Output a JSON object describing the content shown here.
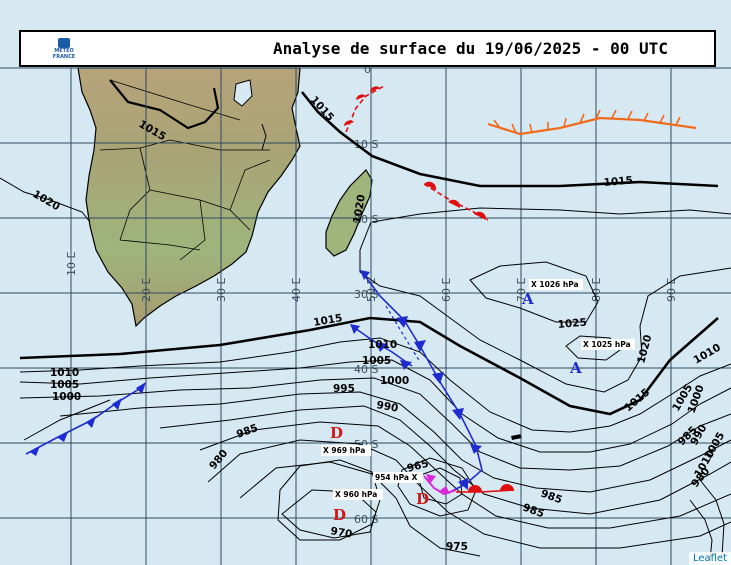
{
  "header": {
    "title": "Analyse de surface du 19/06/2025 - 00 UTC",
    "logo_text_line1": "METEO",
    "logo_text_line2": "FRANCE"
  },
  "attribution": "Leaflet",
  "grid": {
    "longitudes": [
      "10 E",
      "20 E",
      "30 E",
      "40 E",
      "50 E",
      "60 E",
      "70 E",
      "80 E",
      "90 E"
    ],
    "latitudes": [
      "0",
      "10 S",
      "20 S",
      "30 S",
      "40 S",
      "50 S",
      "60 S"
    ]
  },
  "isobar_labels": [
    "1015",
    "1015",
    "1015",
    "1015",
    "1020",
    "1020",
    "1020",
    "1025",
    "1010",
    "1010",
    "1010",
    "1005",
    "1005",
    "1005",
    "1000",
    "1000",
    "1000",
    "995",
    "990",
    "990",
    "985",
    "985",
    "985",
    "980",
    "980",
    "975",
    "970",
    "965",
    "1015",
    "985",
    "1010",
    "1005"
  ],
  "pressure_centers": [
    {
      "type": "A",
      "label": "X 1026 hPa"
    },
    {
      "type": "A",
      "label": "X 1025 hPa"
    },
    {
      "type": "D",
      "label": "X 969 hPa"
    },
    {
      "type": "D",
      "label": "X 960 hPa"
    },
    {
      "type": "",
      "label": "954 hPa X"
    }
  ],
  "colors": {
    "sea": "#d6e9f3",
    "grid": "#2e4a5e",
    "cold_front": "#1e2bd0",
    "warm_front": "#e00d0d",
    "occluded_front": "#d92ad9",
    "convergence_line": "#f06a1c"
  }
}
